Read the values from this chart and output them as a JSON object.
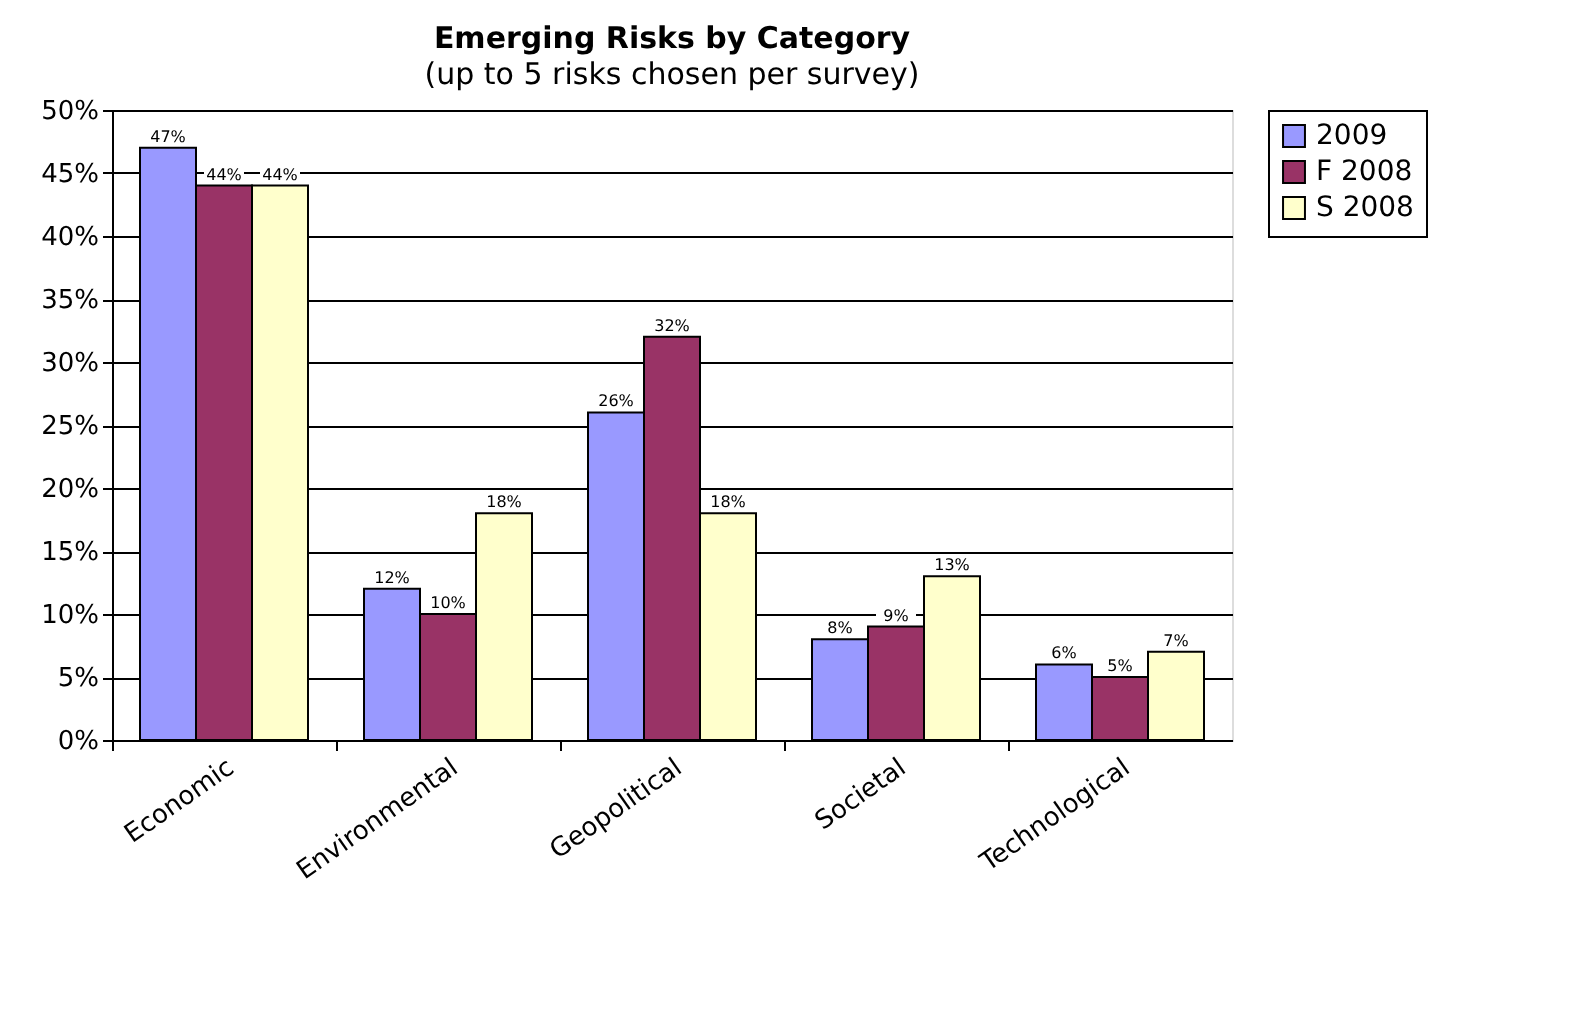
{
  "chart_data": {
    "type": "bar",
    "title": "Emerging Risks by Category",
    "subtitle": "(up to 5 risks chosen per survey)",
    "categories": [
      "Economic",
      "Environmental",
      "Geopolitical",
      "Societal",
      "Technological"
    ],
    "series": [
      {
        "name": "2009",
        "color": "#9999ff",
        "values": [
          47,
          12,
          26,
          8,
          6
        ],
        "value_labels": [
          "47%",
          "12%",
          "26%",
          "8%",
          "6%"
        ]
      },
      {
        "name": "F 2008",
        "color": "#993366",
        "values": [
          44,
          10,
          32,
          9,
          5
        ],
        "value_labels": [
          "44%",
          "10%",
          "32%",
          "9%",
          "5%"
        ]
      },
      {
        "name": "S 2008",
        "color": "#ffffcc",
        "values": [
          44,
          18,
          18,
          13,
          7
        ],
        "value_labels": [
          "44%",
          "18%",
          "18%",
          "13%",
          "7%"
        ]
      }
    ],
    "ylim": [
      0,
      50
    ],
    "yticks": [
      {
        "value": 0,
        "label": "0%"
      },
      {
        "value": 5,
        "label": "5%"
      },
      {
        "value": 10,
        "label": "10%"
      },
      {
        "value": 15,
        "label": "15%"
      },
      {
        "value": 20,
        "label": "20%"
      },
      {
        "value": 25,
        "label": "25%"
      },
      {
        "value": 30,
        "label": "30%"
      },
      {
        "value": 35,
        "label": "35%"
      },
      {
        "value": 40,
        "label": "40%"
      },
      {
        "value": 45,
        "label": "45%"
      },
      {
        "value": 50,
        "label": "50%"
      }
    ],
    "grid": "y",
    "legend": "right"
  }
}
